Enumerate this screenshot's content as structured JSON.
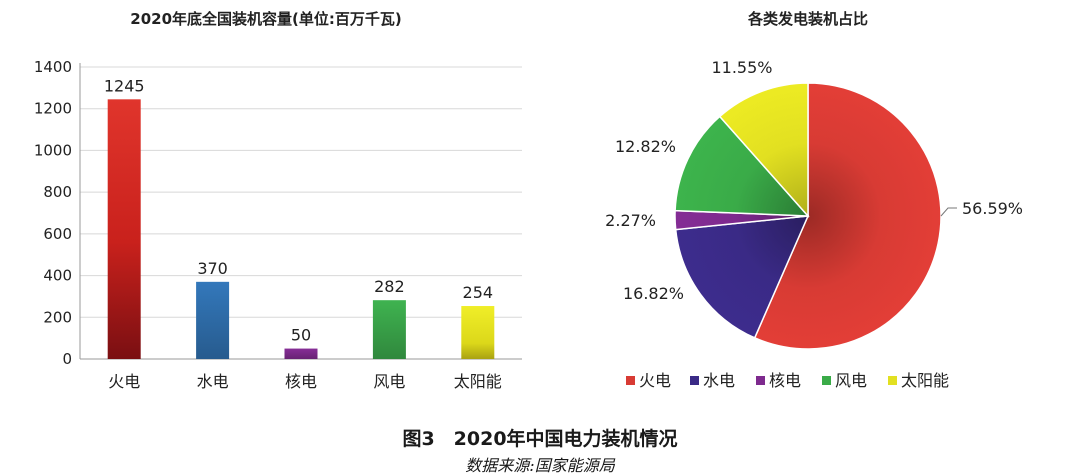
{
  "chart_data": [
    {
      "type": "bar",
      "title": "2020年底全国装机容量(单位:百万千瓦)",
      "categories": [
        "火电",
        "水电",
        "核电",
        "风电",
        "太阳能"
      ],
      "values": [
        1245,
        370,
        50,
        282,
        254
      ],
      "data_labels": [
        "1245",
        "370",
        "50",
        "282",
        "254"
      ],
      "yticks": [
        0,
        200,
        400,
        600,
        800,
        1000,
        1200,
        1400
      ],
      "ylim": [
        0,
        1400
      ],
      "grid": true,
      "colors": [
        "#d42a24",
        "#2f6fad",
        "#7d2b8c",
        "#3aa64a",
        "#d9d91e"
      ]
    },
    {
      "type": "pie",
      "title": "各类发电装机占比",
      "labels": [
        "火电",
        "水电",
        "核电",
        "风电",
        "太阳能"
      ],
      "values": [
        56.59,
        16.82,
        2.27,
        12.82,
        11.55
      ],
      "data_labels": [
        "56.59%",
        "16.82%",
        "2.27%",
        "12.82%",
        "11.55%"
      ],
      "colors": [
        "#d83b34",
        "#3a2a86",
        "#7e2a8e",
        "#3aab48",
        "#e2e021"
      ],
      "legend_position": "bottom"
    }
  ],
  "caption": "图3　2020年中国电力装机情况",
  "source": "数据来源:国家能源局"
}
